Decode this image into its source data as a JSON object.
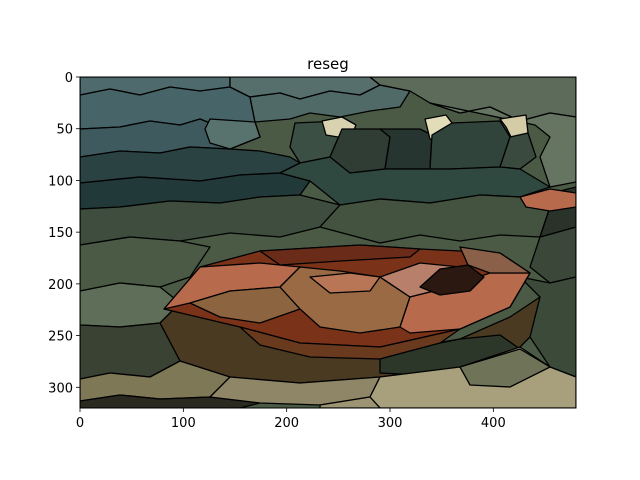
{
  "figure": {
    "title": "reseg"
  },
  "image": {
    "description_name": "segmented-boat-on-beach",
    "x_range": [
      0,
      480
    ],
    "y_range": [
      0,
      320
    ],
    "x_ticks": [
      0,
      100,
      200,
      300,
      400
    ],
    "y_ticks": [
      0,
      50,
      100,
      150,
      200,
      250,
      300
    ],
    "palette": {
      "sky_dark": "#3f5a5e",
      "sky_mid": "#4f6a6c",
      "sea_dark": "#22393a",
      "sea_mid": "#2f4840",
      "hill": "#5d6b5a",
      "building_light": "#d8d2b0",
      "building_dark": "#263530",
      "ground_green": "#4b5a45",
      "ground_olive": "#6f7358",
      "sand": "#8e8666",
      "sand_light": "#a8a07c",
      "boat_rust": "#b86a4c",
      "boat_red": "#7a3219",
      "boat_brown": "#8c6440",
      "boat_dark": "#2b1810",
      "shadow": "#4a3a22",
      "bush_dark": "#2a332a",
      "boat_tan": "#b8806a"
    }
  }
}
